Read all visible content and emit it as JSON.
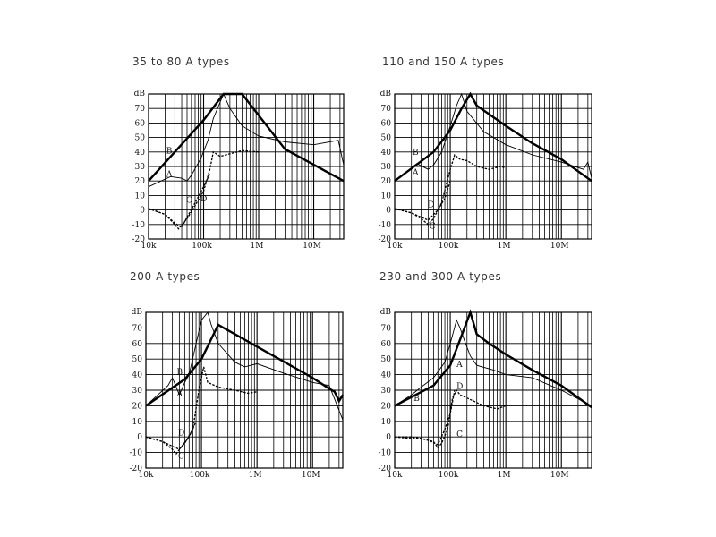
{
  "chart_data": [
    {
      "type": "line",
      "title": "35 to 80 A types",
      "y_unit": "dB",
      "ylim": [
        -20,
        80
      ],
      "x_scale": "log",
      "xlim": [
        10000,
        35000000
      ],
      "x_tick_labels": [
        "10k",
        "100k",
        "1M",
        "10M"
      ],
      "y_tick_labels": [
        "70",
        "60",
        "50",
        "40",
        "30",
        "20",
        "10",
        "0",
        "-10",
        "-20"
      ],
      "grid": true,
      "series": [
        {
          "name": "B",
          "style": "bold",
          "x": [
            10000,
            100000,
            230000,
            500000,
            3000000,
            35000000
          ],
          "y": [
            20,
            62,
            80,
            80,
            42,
            20
          ]
        },
        {
          "name": "A",
          "style": "thin",
          "x": [
            10000,
            25000,
            40000,
            50000,
            60000,
            90000,
            120000,
            150000,
            230000,
            300000,
            500000,
            1000000,
            3000000,
            10000000,
            28000000,
            35000000
          ],
          "y": [
            16,
            23,
            22,
            20,
            24,
            36,
            48,
            63,
            80,
            70,
            58,
            51,
            47,
            45,
            48,
            31
          ]
        },
        {
          "name": "C",
          "style": "dashed",
          "x": [
            10000,
            20000,
            30000,
            35000,
            50000,
            70000,
            100000,
            130000,
            150000,
            200000,
            500000,
            1000000
          ],
          "y": [
            1,
            -3,
            -10,
            -13,
            -6,
            3,
            13,
            28,
            40,
            37,
            41,
            40
          ]
        },
        {
          "name": "D",
          "style": "dashed",
          "x": [
            10000,
            20000,
            30000,
            40000,
            50000,
            70000,
            100000,
            130000
          ],
          "y": [
            1,
            -3,
            -9,
            -12,
            -5,
            5,
            16,
            25
          ]
        }
      ],
      "labels": [
        {
          "text": "B",
          "x": 21000,
          "y": 39
        },
        {
          "text": "A",
          "x": 21000,
          "y": 23
        },
        {
          "text": "C",
          "x": 48000,
          "y": 5
        },
        {
          "text": "D",
          "x": 88000,
          "y": 6
        }
      ]
    },
    {
      "type": "line",
      "title": "110 and 150 A types",
      "y_unit": "dB",
      "ylim": [
        -20,
        80
      ],
      "x_scale": "log",
      "xlim": [
        10000,
        35000000
      ],
      "x_tick_labels": [
        "10k",
        "100k",
        "1M",
        "10M"
      ],
      "y_tick_labels": [
        "70",
        "60",
        "50",
        "40",
        "30",
        "20",
        "10",
        "0",
        "-10",
        "-20"
      ],
      "grid": true,
      "series": [
        {
          "name": "B",
          "style": "bold",
          "x": [
            10000,
            50000,
            100000,
            160000,
            230000,
            300000,
            1000000,
            3000000,
            10000000,
            35000000
          ],
          "y": [
            20,
            40,
            55,
            70,
            80,
            72,
            58,
            46,
            35,
            20
          ]
        },
        {
          "name": "A",
          "style": "thin",
          "x": [
            10000,
            25000,
            40000,
            50000,
            70000,
            100000,
            130000,
            160000,
            200000,
            400000,
            1000000,
            3000000,
            10000000,
            25000000,
            30000000,
            35000000
          ],
          "y": [
            20,
            32,
            28,
            31,
            40,
            58,
            72,
            80,
            68,
            54,
            45,
            38,
            33,
            28,
            33,
            22
          ]
        },
        {
          "name": "C",
          "style": "dashed",
          "x": [
            10000,
            20000,
            30000,
            40000,
            50000,
            70000,
            100000,
            120000,
            150000,
            200000,
            300000,
            500000,
            800000,
            1000000
          ],
          "y": [
            1,
            -2,
            -6,
            -10,
            -6,
            5,
            28,
            38,
            35,
            34,
            30,
            28,
            30,
            29
          ]
        },
        {
          "name": "D",
          "style": "dashed",
          "x": [
            10000,
            20000,
            30000,
            40000,
            60000,
            80000,
            100000
          ],
          "y": [
            1,
            -2,
            -5,
            -7,
            0,
            8,
            20
          ]
        }
      ],
      "labels": [
        {
          "text": "B",
          "x": 21000,
          "y": 38
        },
        {
          "text": "A",
          "x": 21000,
          "y": 24
        },
        {
          "text": "D",
          "x": 40000,
          "y": 2
        },
        {
          "text": "C",
          "x": 42000,
          "y": -13
        }
      ]
    },
    {
      "type": "line",
      "title": "200 A types",
      "y_unit": "dB",
      "ylim": [
        -20,
        80
      ],
      "x_scale": "log",
      "xlim": [
        10000,
        35000000
      ],
      "x_tick_labels": [
        "10k",
        "100k",
        "1M",
        "10M"
      ],
      "y_tick_labels": [
        "70",
        "60",
        "50",
        "40",
        "30",
        "20",
        "10",
        "0",
        "-10",
        "-20"
      ],
      "grid": true,
      "series": [
        {
          "name": "B",
          "style": "bold",
          "x": [
            10000,
            50000,
            100000,
            200000,
            1000000,
            10000000,
            20000000,
            25000000,
            30000000,
            35000000
          ],
          "y": [
            20,
            37,
            50,
            72,
            58,
            38,
            31,
            29,
            23,
            27
          ]
        },
        {
          "name": "A",
          "style": "thin",
          "x": [
            10000,
            25000,
            30000,
            40000,
            50000,
            60000,
            80000,
            100000,
            130000,
            150000,
            200000,
            400000,
            600000,
            1000000,
            3000000,
            10000000,
            20000000,
            35000000
          ],
          "y": [
            20,
            33,
            38,
            27,
            35,
            40,
            60,
            75,
            80,
            72,
            60,
            48,
            45,
            47,
            41,
            35,
            33,
            11
          ]
        },
        {
          "name": "C",
          "style": "dashed",
          "x": [
            10000,
            20000,
            30000,
            35000,
            40000,
            50000,
            70000,
            90000,
            110000,
            130000,
            200000,
            400000,
            700000,
            1000000
          ],
          "y": [
            0,
            -3,
            -8,
            -11,
            -8,
            -4,
            5,
            30,
            45,
            35,
            32,
            30,
            28,
            29
          ]
        },
        {
          "name": "D",
          "style": "dashed",
          "x": [
            10000,
            20000,
            30000,
            40000,
            60000,
            80000
          ],
          "y": [
            0,
            -3,
            -6,
            -8,
            0,
            10
          ]
        }
      ],
      "labels": [
        {
          "text": "B",
          "x": 36000,
          "y": 40
        },
        {
          "text": "A",
          "x": 36000,
          "y": 26
        },
        {
          "text": "D",
          "x": 38000,
          "y": 1
        },
        {
          "text": "C",
          "x": 38000,
          "y": -14
        }
      ]
    },
    {
      "type": "line",
      "title": "230 and 300 A types",
      "y_unit": "dB",
      "ylim": [
        -20,
        80
      ],
      "x_scale": "log",
      "xlim": [
        10000,
        35000000
      ],
      "x_tick_labels": [
        "10k",
        "100k",
        "1M",
        "10M"
      ],
      "y_tick_labels": [
        "70",
        "60",
        "50",
        "40",
        "30",
        "20",
        "10",
        "0",
        "-10",
        "-20"
      ],
      "grid": true,
      "series": [
        {
          "name": "B",
          "style": "bold",
          "x": [
            10000,
            50000,
            100000,
            160000,
            230000,
            300000,
            500000,
            1000000,
            3000000,
            10000000,
            35000000
          ],
          "y": [
            20,
            33,
            46,
            65,
            80,
            66,
            60,
            53,
            43,
            33,
            19
          ]
        },
        {
          "name": "A",
          "style": "thin",
          "x": [
            10000,
            20000,
            30000,
            50000,
            80000,
            100000,
            130000,
            150000,
            180000,
            230000,
            300000,
            600000,
            1000000,
            3000000,
            10000000,
            35000000
          ],
          "y": [
            20,
            27,
            32,
            38,
            48,
            60,
            75,
            70,
            62,
            52,
            46,
            43,
            40,
            38,
            30,
            20
          ]
        },
        {
          "name": "C",
          "style": "dashed",
          "x": [
            10000,
            20000,
            30000,
            50000,
            60000,
            70000,
            90000,
            110000,
            130000,
            150000,
            200000,
            400000,
            700000,
            1000000
          ],
          "y": [
            0,
            -1,
            -1,
            -3,
            -7,
            -4,
            5,
            25,
            30,
            27,
            25,
            20,
            18,
            20
          ]
        },
        {
          "name": "D",
          "style": "dashed",
          "x": [
            10000,
            20000,
            30000,
            40000,
            60000,
            80000,
            100000,
            120000
          ],
          "y": [
            0,
            0,
            -1,
            -2,
            -5,
            5,
            15,
            30
          ]
        }
      ],
      "labels": [
        {
          "text": "A",
          "x": 130000,
          "y": 45
        },
        {
          "text": "B",
          "x": 22000,
          "y": 23
        },
        {
          "text": "D",
          "x": 130000,
          "y": 31
        },
        {
          "text": "C",
          "x": 130000,
          "y": 0
        }
      ]
    }
  ]
}
